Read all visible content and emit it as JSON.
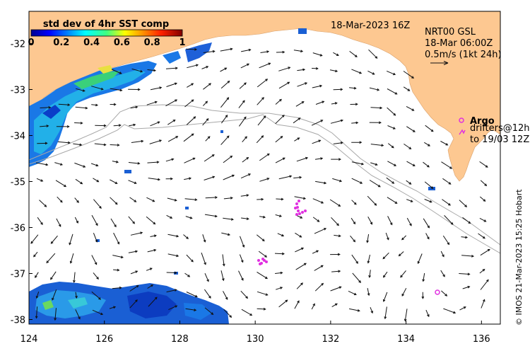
{
  "map": {
    "date_label": "18-Mar-2023 16Z",
    "credit": "© IMOS 21-Mar-2023 15:25 Hobart",
    "x_ticks": [
      "124",
      "126",
      "128",
      "130",
      "132",
      "134",
      "136"
    ],
    "y_ticks": [
      "-32",
      "-33",
      "-34",
      "-35",
      "-36",
      "-37",
      "-38"
    ],
    "lon_range": [
      124,
      136.5
    ],
    "lat_range": [
      -38.1,
      -31.3
    ]
  },
  "colorbar": {
    "title": "std dev of 4hr SST comp",
    "ticks": [
      "0",
      "0.2",
      "0.4",
      "0.6",
      "0.8",
      "1"
    ]
  },
  "current_legend": {
    "model": "NRT00 GSL",
    "time": "18-Mar 06:00Z",
    "scale": "0.5m/s (1kt 24h)"
  },
  "argo_legend": {
    "label": "Argo",
    "drifters_line1": "drifters@12h",
    "drifters_line2": "to 19/03 12Z"
  },
  "colors": {
    "land": "#fdc891",
    "argo": "#e030e0",
    "contour": "#a8a8a8",
    "arrow": "#111111"
  }
}
